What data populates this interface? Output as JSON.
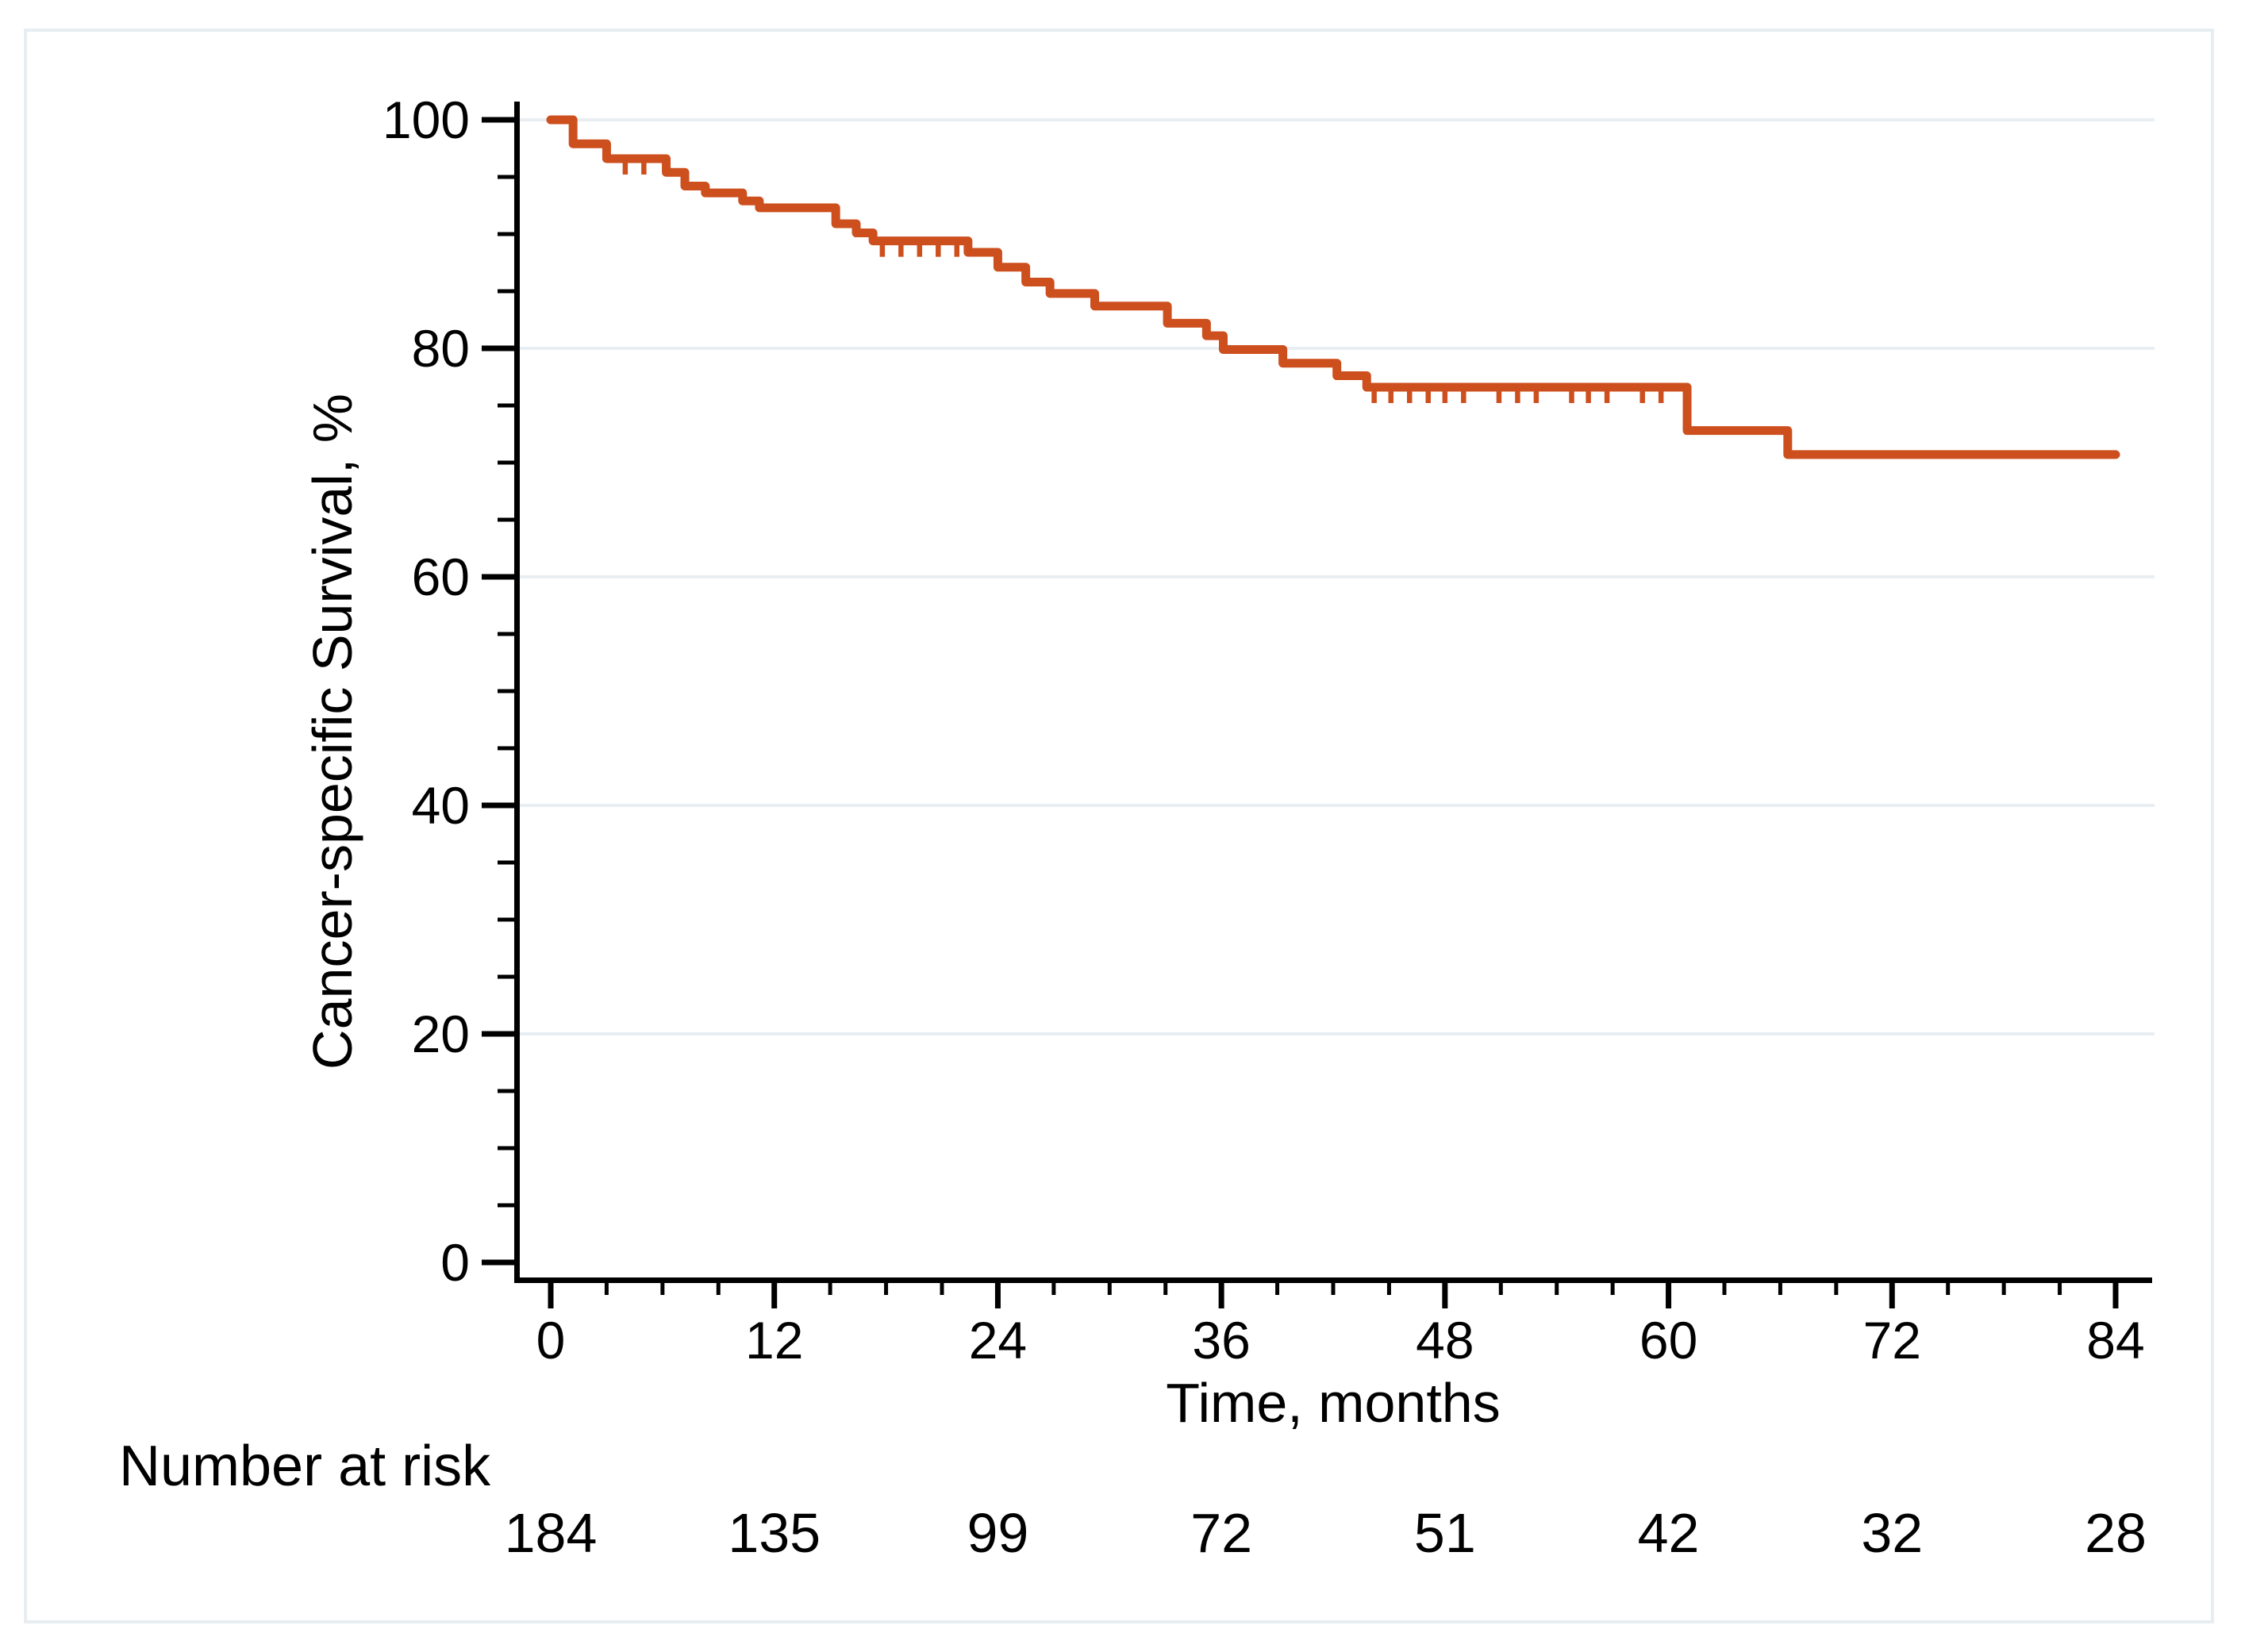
{
  "figure": {
    "background": "#FFFFFF",
    "border_color": "#E7EDF0",
    "axis_color": "#000000"
  },
  "chart_data": {
    "type": "line",
    "subtype": "kaplan-meier-step",
    "title": "",
    "xlabel": "Time, months",
    "ylabel": "Cancer-specific Survival, %",
    "xlim": [
      0,
      84
    ],
    "ylim": [
      0,
      100
    ],
    "x_ticks": [
      0,
      12,
      24,
      36,
      48,
      60,
      72,
      84
    ],
    "x_minor_tick_step": 3,
    "y_ticks": [
      0,
      20,
      40,
      60,
      80,
      100
    ],
    "y_minor_tick_step": 5,
    "grid": "horizontal-major",
    "grid_color": "#E8EEF2",
    "line_color": "#CD4F1E",
    "legend": "none",
    "series": [
      {
        "name": "Cancer-specific survival",
        "start": [
          0,
          100
        ],
        "end_time": 84,
        "drops": [
          [
            1.2,
            97.9
          ],
          [
            3,
            96.6
          ],
          [
            6.2,
            95.4
          ],
          [
            7.2,
            94.2
          ],
          [
            8.3,
            93.6
          ],
          [
            10.3,
            92.9
          ],
          [
            11.2,
            92.3
          ],
          [
            15.3,
            90.9
          ],
          [
            16.4,
            90.1
          ],
          [
            17.3,
            89.4
          ],
          [
            22.4,
            88.4
          ],
          [
            24,
            87.1
          ],
          [
            25.5,
            85.8
          ],
          [
            26.8,
            84.8
          ],
          [
            29.2,
            83.7
          ],
          [
            33.1,
            82.2
          ],
          [
            35.2,
            81.1
          ],
          [
            36.1,
            79.9
          ],
          [
            39.3,
            78.7
          ],
          [
            42.2,
            77.6
          ],
          [
            43.8,
            76.6
          ],
          [
            61,
            72.8
          ],
          [
            66.4,
            70.7
          ]
        ],
        "censor_marks": [
          [
            4,
            96.6
          ],
          [
            5,
            96.6
          ],
          [
            17.8,
            89.4
          ],
          [
            18.8,
            89.4
          ],
          [
            19.8,
            89.4
          ],
          [
            20.8,
            89.4
          ],
          [
            21.8,
            89.4
          ],
          [
            44.2,
            76.6
          ],
          [
            45.1,
            76.6
          ],
          [
            46.1,
            76.6
          ],
          [
            47.1,
            76.6
          ],
          [
            48,
            76.6
          ],
          [
            49,
            76.6
          ],
          [
            50.9,
            76.6
          ],
          [
            51.9,
            76.6
          ],
          [
            52.9,
            76.6
          ],
          [
            54.8,
            76.6
          ],
          [
            55.7,
            76.6
          ],
          [
            56.7,
            76.6
          ],
          [
            58.6,
            76.6
          ],
          [
            59.6,
            76.6
          ]
        ]
      }
    ]
  },
  "risk_table": {
    "label": "Number at risk",
    "times": [
      0,
      12,
      24,
      36,
      48,
      60,
      72,
      84
    ],
    "counts": [
      184,
      135,
      99,
      72,
      51,
      42,
      32,
      28
    ]
  }
}
